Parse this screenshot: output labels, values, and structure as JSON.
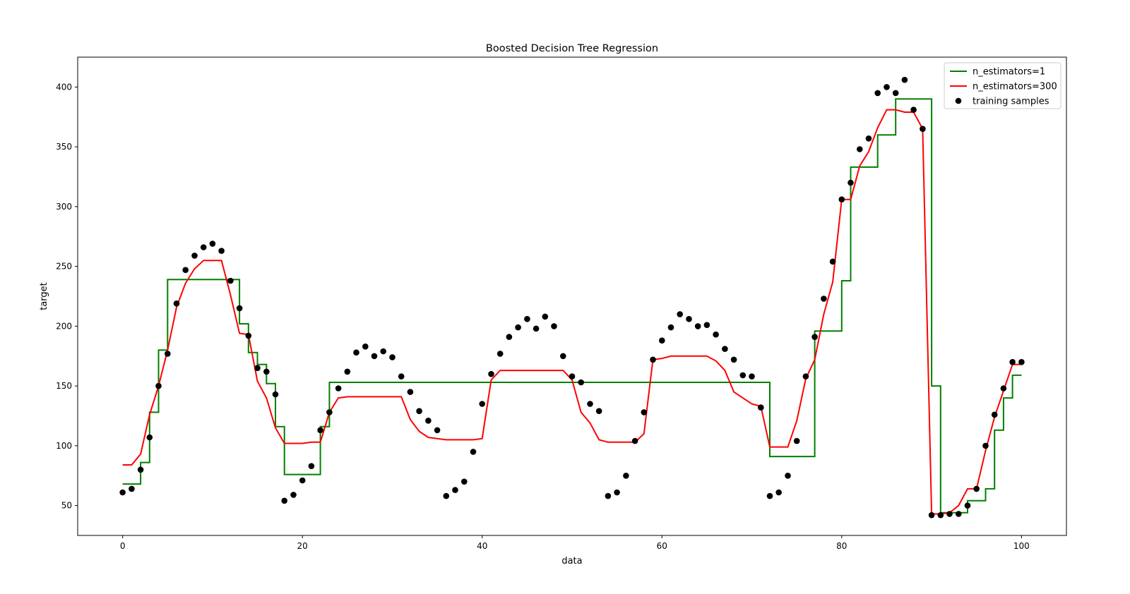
{
  "chart_data": {
    "type": "scatter",
    "title": "Boosted Decision Tree Regression",
    "xlabel": "data",
    "ylabel": "target",
    "xlim": [
      -5,
      105
    ],
    "ylim": [
      25,
      425
    ],
    "xticks": [
      0,
      20,
      40,
      60,
      80,
      100
    ],
    "yticks": [
      50,
      100,
      150,
      200,
      250,
      300,
      350,
      400
    ],
    "grid": false,
    "legend": "top-right",
    "series": [
      {
        "name": "n_estimators=1",
        "kind": "line",
        "color": "#008000",
        "x": [
          0,
          2,
          2,
          3,
          3,
          4,
          4,
          5,
          5,
          13,
          13,
          14,
          14,
          15,
          15,
          16,
          16,
          17,
          17,
          18,
          18,
          22,
          22,
          23,
          23,
          72,
          72,
          77,
          77,
          80,
          80,
          81,
          81,
          84,
          84,
          86,
          86,
          90,
          90,
          91,
          91,
          94,
          94,
          96,
          96,
          97,
          97,
          98,
          98,
          99,
          99,
          100
        ],
        "y": [
          68,
          68,
          86,
          86,
          128,
          128,
          180,
          180,
          239,
          239,
          202,
          202,
          178,
          178,
          168,
          168,
          152,
          152,
          116,
          116,
          76,
          76,
          116,
          116,
          153,
          153,
          91,
          91,
          196,
          196,
          238,
          238,
          333,
          333,
          360,
          360,
          390,
          390,
          150,
          150,
          44,
          44,
          54,
          54,
          64,
          64,
          113,
          113,
          140,
          140,
          159,
          159
        ]
      },
      {
        "name": "n_estimators=300",
        "kind": "line",
        "color": "#ff0000",
        "x": [
          0,
          1,
          2,
          3,
          4,
          5,
          6,
          7,
          8,
          9,
          10,
          11,
          12,
          13,
          14,
          15,
          16,
          17,
          18,
          19,
          20,
          21,
          22,
          23,
          24,
          25,
          26,
          27,
          28,
          29,
          30,
          31,
          32,
          33,
          34,
          35,
          36,
          37,
          38,
          39,
          40,
          41,
          42,
          43,
          44,
          45,
          46,
          47,
          48,
          49,
          50,
          51,
          52,
          53,
          54,
          55,
          56,
          57,
          58,
          59,
          60,
          61,
          62,
          63,
          64,
          65,
          66,
          67,
          68,
          69,
          70,
          71,
          72,
          73,
          74,
          75,
          76,
          77,
          78,
          79,
          80,
          81,
          82,
          83,
          84,
          85,
          86,
          87,
          88,
          89,
          90,
          91,
          92,
          93,
          94,
          95,
          96,
          97,
          98,
          99,
          100
        ],
        "y": [
          84,
          84,
          93,
          126,
          150,
          180,
          216,
          236,
          248,
          255,
          255,
          255,
          226,
          194,
          193,
          154,
          140,
          115,
          102,
          102,
          102,
          103,
          103,
          128,
          140,
          141,
          141,
          141,
          141,
          141,
          141,
          141,
          122,
          112,
          107,
          106,
          105,
          105,
          105,
          105,
          106,
          155,
          163,
          163,
          163,
          163,
          163,
          163,
          163,
          163,
          155,
          128,
          119,
          105,
          103,
          103,
          103,
          103,
          110,
          172,
          173,
          175,
          175,
          175,
          175,
          175,
          171,
          163,
          145,
          140,
          135,
          133,
          99,
          99,
          99,
          121,
          156,
          172,
          210,
          237,
          306,
          306,
          334,
          346,
          366,
          381,
          381,
          379,
          379,
          365,
          43,
          43,
          44,
          50,
          64,
          64,
          96,
          124,
          146,
          168,
          168
        ]
      },
      {
        "name": "training samples",
        "kind": "scatter",
        "color": "#000000",
        "x": [
          0,
          1,
          2,
          3,
          4,
          5,
          6,
          7,
          8,
          9,
          10,
          11,
          12,
          13,
          14,
          15,
          16,
          17,
          18,
          19,
          20,
          21,
          22,
          23,
          24,
          25,
          26,
          27,
          28,
          29,
          30,
          31,
          32,
          33,
          34,
          35,
          36,
          37,
          38,
          39,
          40,
          41,
          42,
          43,
          44,
          45,
          46,
          47,
          48,
          49,
          50,
          51,
          52,
          53,
          54,
          55,
          56,
          57,
          58,
          59,
          60,
          61,
          62,
          63,
          64,
          65,
          66,
          67,
          68,
          69,
          70,
          71,
          72,
          73,
          74,
          75,
          76,
          77,
          78,
          79,
          80,
          81,
          82,
          83,
          84,
          85,
          86,
          87,
          88,
          89,
          90,
          91,
          92,
          93,
          94,
          95,
          96,
          97,
          98,
          99,
          100
        ],
        "y": [
          61,
          64,
          80,
          107,
          150,
          177,
          219,
          247,
          259,
          266,
          269,
          263,
          238,
          215,
          192,
          165,
          162,
          143,
          54,
          59,
          71,
          83,
          113,
          128,
          148,
          162,
          178,
          183,
          175,
          179,
          174,
          158,
          145,
          129,
          121,
          113,
          58,
          63,
          70,
          95,
          135,
          160,
          177,
          191,
          199,
          206,
          198,
          208,
          200,
          175,
          158,
          153,
          135,
          129,
          58,
          61,
          75,
          104,
          128,
          172,
          188,
          199,
          210,
          206,
          200,
          201,
          193,
          181,
          172,
          159,
          158,
          132,
          58,
          61,
          75,
          104,
          158,
          191,
          223,
          254,
          306,
          320,
          348,
          357,
          395,
          400,
          395,
          406,
          381,
          365,
          42,
          42,
          43,
          43,
          50,
          64,
          100,
          126,
          148,
          170,
          170
        ]
      }
    ]
  }
}
